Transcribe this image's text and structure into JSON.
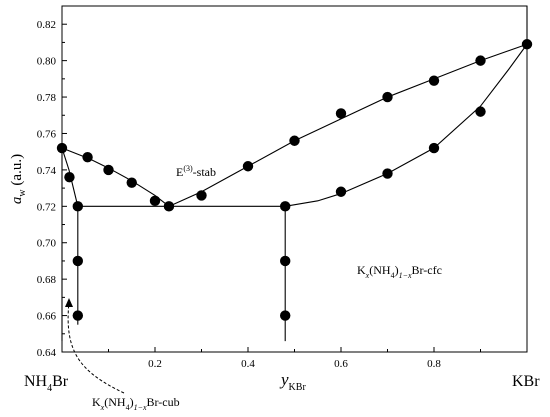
{
  "chart_data": {
    "type": "scatter",
    "xlim": [
      0,
      1
    ],
    "ylim": [
      0.64,
      0.83
    ],
    "x_ticks": [
      0.2,
      0.4,
      0.6,
      0.8
    ],
    "x_tick_labels": [
      "0.2",
      "0.4",
      "0.6",
      "0.8"
    ],
    "y_ticks": [
      0.64,
      0.66,
      0.68,
      0.7,
      0.72,
      0.74,
      0.76,
      0.78,
      0.8,
      0.82
    ],
    "y_tick_labels": [
      "0.64",
      "0.66",
      "0.68",
      "0.70",
      "0.72",
      "0.74",
      "0.76",
      "0.78",
      "0.80",
      "0.82"
    ],
    "ylabel": {
      "main": "a",
      "sub": "w",
      "rest": " (a.u.)"
    },
    "xlabel": {
      "main": "y",
      "sub": "KBr"
    },
    "left_end_label": {
      "main": "NH",
      "sub": "4",
      "rest": "Br"
    },
    "right_end_label": "KBr",
    "annotations": {
      "eutonic": {
        "main": "E",
        "sup": "(3)",
        "rest": "-stab"
      },
      "cfc_phase": {
        "t1": "K",
        "t2": "x",
        "t3": "(NH",
        "t4": "4",
        "t5": ")",
        "t6": "1−x",
        "t7": "Br-cfc"
      },
      "cub_phase": {
        "t1": "K",
        "t2": "x",
        "t3": "(NH",
        "t4": "4",
        "t5": ")",
        "t6": "1−x",
        "t7": "Br-cub"
      }
    },
    "grid": false,
    "points": [
      {
        "x": 0.0,
        "y": 0.752
      },
      {
        "x": 0.016,
        "y": 0.736
      },
      {
        "x": 0.034,
        "y": 0.72
      },
      {
        "x": 0.034,
        "y": 0.69
      },
      {
        "x": 0.034,
        "y": 0.66
      },
      {
        "x": 0.055,
        "y": 0.747
      },
      {
        "x": 0.1,
        "y": 0.74
      },
      {
        "x": 0.15,
        "y": 0.733
      },
      {
        "x": 0.2,
        "y": 0.723
      },
      {
        "x": 0.23,
        "y": 0.72
      },
      {
        "x": 0.3,
        "y": 0.726
      },
      {
        "x": 0.4,
        "y": 0.742
      },
      {
        "x": 0.5,
        "y": 0.756
      },
      {
        "x": 0.6,
        "y": 0.771
      },
      {
        "x": 0.7,
        "y": 0.78
      },
      {
        "x": 0.8,
        "y": 0.789
      },
      {
        "x": 0.9,
        "y": 0.8
      },
      {
        "x": 1.0,
        "y": 0.809
      },
      {
        "x": 0.48,
        "y": 0.72
      },
      {
        "x": 0.48,
        "y": 0.69
      },
      {
        "x": 0.48,
        "y": 0.66
      },
      {
        "x": 0.6,
        "y": 0.728
      },
      {
        "x": 0.7,
        "y": 0.738
      },
      {
        "x": 0.8,
        "y": 0.752
      },
      {
        "x": 0.9,
        "y": 0.772
      }
    ],
    "lines": {
      "upper_right_curve": [
        [
          0.23,
          0.72
        ],
        [
          0.3,
          0.728
        ],
        [
          0.4,
          0.742
        ],
        [
          0.5,
          0.756
        ],
        [
          0.6,
          0.768
        ],
        [
          0.7,
          0.78
        ],
        [
          0.8,
          0.79
        ],
        [
          0.9,
          0.8
        ],
        [
          1.0,
          0.809
        ]
      ],
      "lower_right_curve": [
        [
          0.48,
          0.72
        ],
        [
          0.55,
          0.723
        ],
        [
          0.6,
          0.727
        ],
        [
          0.7,
          0.738
        ],
        [
          0.8,
          0.752
        ],
        [
          0.9,
          0.775
        ],
        [
          0.96,
          0.795
        ],
        [
          1.0,
          0.809
        ]
      ],
      "left_upper": [
        [
          0.0,
          0.752
        ],
        [
          0.06,
          0.746
        ],
        [
          0.1,
          0.741
        ],
        [
          0.15,
          0.734
        ],
        [
          0.2,
          0.726
        ],
        [
          0.23,
          0.72
        ]
      ],
      "left_steep": [
        [
          0.0,
          0.752
        ],
        [
          0.015,
          0.74
        ],
        [
          0.034,
          0.72
        ]
      ],
      "left_solidus": [
        [
          0.0,
          0.752
        ],
        [
          0.0,
          0.72
        ],
        [
          0.0,
          0.7
        ],
        [
          0.0,
          0.68
        ],
        [
          0.0,
          0.66
        ],
        [
          0.0,
          0.646
        ]
      ],
      "three_phase_line": [
        [
          0.034,
          0.72
        ],
        [
          0.48,
          0.72
        ]
      ],
      "cub_vertical": [
        [
          0.034,
          0.72
        ],
        [
          0.034,
          0.655
        ]
      ],
      "cfc_vertical": [
        [
          0.48,
          0.72
        ],
        [
          0.48,
          0.646
        ]
      ],
      "right_edge": [
        [
          1.0,
          0.809
        ],
        [
          1.0,
          0.83
        ]
      ]
    }
  }
}
